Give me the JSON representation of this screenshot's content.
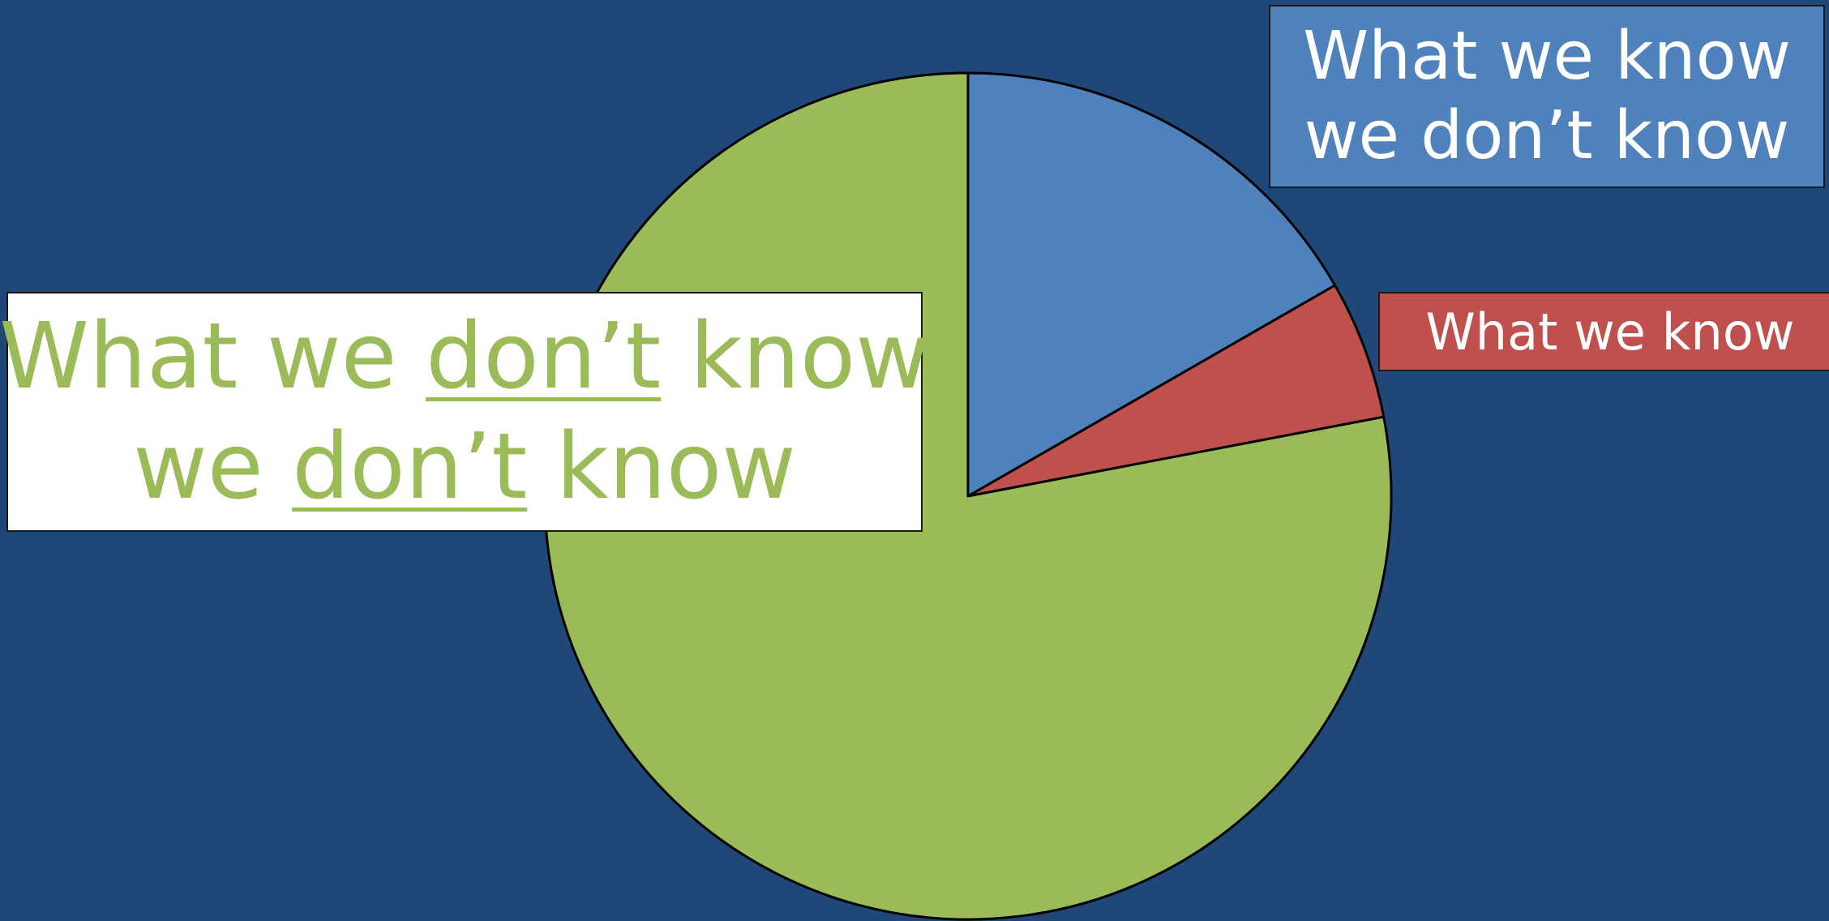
{
  "chart_data": {
    "type": "pie",
    "start_angle_deg": 0,
    "direction": "clockwise",
    "slices": [
      {
        "label_parts": [
          [
            "What we know",
            false
          ],
          [
            "we don’t know",
            false
          ]
        ],
        "value": 16.7,
        "color": "#4f81bd"
      },
      {
        "label_parts": [
          [
            "What we know",
            false
          ]
        ],
        "value": 5.3,
        "color": "#c0504d"
      },
      {
        "label_parts": [
          [
            "What we don’t know",
            false
          ]
        ],
        "value": 78.0,
        "color": "#9bbb59"
      }
    ]
  },
  "labels": {
    "blue_line1": "What we know",
    "blue_line2": "we don’t know",
    "red": "What we know",
    "white_l1_a": "What we ",
    "white_l1_b": "don’t",
    "white_l1_c": " know",
    "white_l2_a": "we ",
    "white_l2_b": "don’t",
    "white_l2_c": " know"
  },
  "colors": {
    "background": "#1f4778",
    "outline": "#000000"
  }
}
